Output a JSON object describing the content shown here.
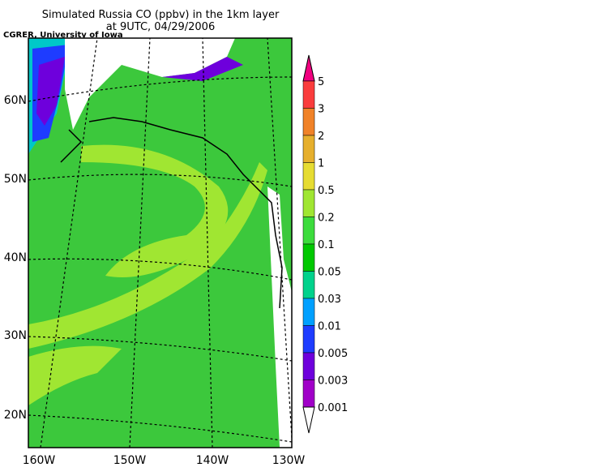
{
  "title": "Simulated Russia CO (ppbv) in the 1km layer",
  "subtitle": "at 9UTC, 04/29/2006",
  "credit": "CGRER, University of Iowa",
  "lat_labels": [
    "60N",
    "50N",
    "40N",
    "30N",
    "20N"
  ],
  "lon_labels": [
    "160W",
    "150W",
    "140W",
    "130W"
  ],
  "colorbar": {
    "labels": [
      "5",
      "3",
      "2",
      "1",
      "0.5",
      "0.2",
      "0.1",
      "0.05",
      "0.03",
      "0.01",
      "0.005",
      "0.003",
      "0.001"
    ],
    "colors": [
      "#f0007f",
      "#fa3c3c",
      "#f08228",
      "#e6af2d",
      "#e6dc32",
      "#a0e632",
      "#3cdc3c",
      "#00c800",
      "#00d28c",
      "#00a0ff",
      "#1e3cff",
      "#6e00dc",
      "#a000c8",
      "#ffffff"
    ]
  }
}
